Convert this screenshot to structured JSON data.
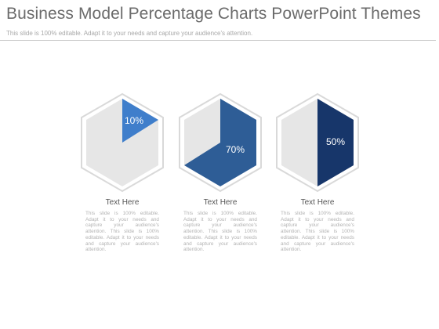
{
  "slide": {
    "title": "Business Model Percentage Charts PowerPoint Themes",
    "subtitle": "This slide is 100% editable. Adapt it to your needs and capture your audience's attention."
  },
  "colors": {
    "hex_fill": "#e6e6e6",
    "hex_outline": "#d9d9d9",
    "card1_accent": "#3f7ecb",
    "card2_accent": "#2e5d96",
    "card3_accent": "#17366a"
  },
  "cards": [
    {
      "percent_label": "10%",
      "percent_value": 10,
      "heading": "Text Here",
      "body": "This slide is 100% editable. Adapt it to your needs and capture your audience's attention. This slide is 100% editable. Adapt it to your needs and capture your audience's attention."
    },
    {
      "percent_label": "70%",
      "percent_value": 70,
      "heading": "Text Here",
      "body": "This slide is 100% editable. Adapt it to your needs and capture your audience's attention. This slide is 100% editable. Adapt it to your needs and capture your audience's attention."
    },
    {
      "percent_label": "50%",
      "percent_value": 50,
      "heading": "Text Here",
      "body": "This slide is 100% editable. Adapt it to your needs and capture your audience's attention. This slide is 100% editable. Adapt it to your needs and capture your audience's attention."
    }
  ]
}
